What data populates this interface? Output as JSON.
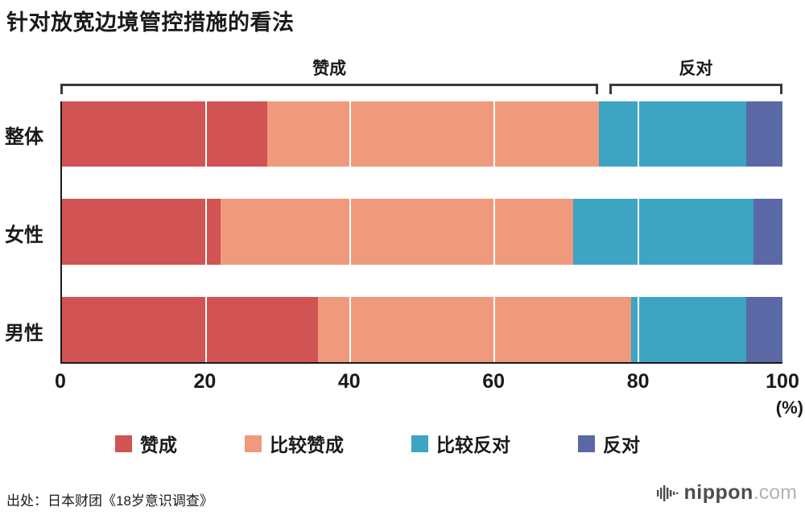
{
  "title": "针对放宽边境管控措施的看法",
  "source": "出处：日本财团《18岁意识调查》",
  "logo": {
    "name": "nippon",
    "tld": ".com"
  },
  "chart_data": {
    "type": "bar",
    "stacked": true,
    "orientation": "horizontal",
    "title": "针对放宽边境管控措施的看法",
    "unit_label": "(%)",
    "xlim": [
      0,
      100
    ],
    "xticks": [
      0,
      20,
      40,
      60,
      80,
      100
    ],
    "grid": "white vertical lines at ticks over bars",
    "legend_position": "bottom",
    "categories": [
      "整体",
      "女性",
      "男性"
    ],
    "series": [
      {
        "name": "赞成",
        "color": "#d25353",
        "values": [
          28.5,
          22.0,
          35.5
        ]
      },
      {
        "name": "比较赞成",
        "color": "#f09a7d",
        "values": [
          46.0,
          49.0,
          43.5
        ]
      },
      {
        "name": "比较反对",
        "color": "#3da4c2",
        "values": [
          20.5,
          25.0,
          16.0
        ]
      },
      {
        "name": "反对",
        "color": "#5a69a6",
        "values": [
          5.0,
          4.0,
          5.0
        ]
      }
    ],
    "brackets": [
      {
        "label": "赞成",
        "from": 0,
        "to": 74.5
      },
      {
        "label": "反对",
        "from": 76,
        "to": 100
      }
    ]
  }
}
